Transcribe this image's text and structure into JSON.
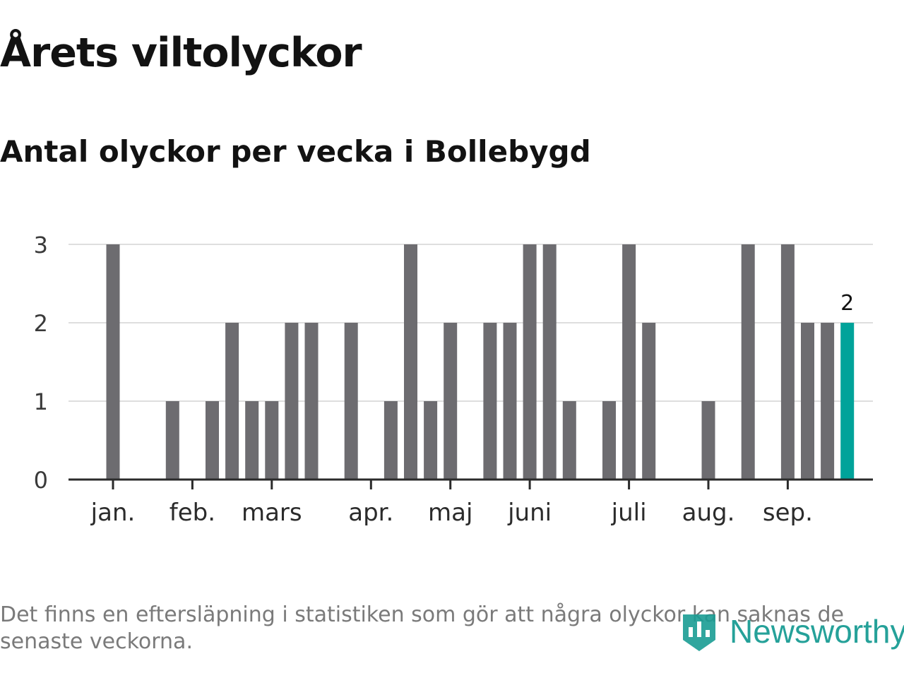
{
  "title": "Årets viltolyckor",
  "subtitle": "Antal olyckor per vecka i Bollebygd",
  "note": "Det finns en eftersläpning i statistiken som gör att några olyckor kan saknas de senaste veckorna.",
  "brand": {
    "name": "Newsworthy",
    "color": "#1a9c94"
  },
  "chart_data": {
    "type": "bar",
    "title": "Årets viltolyckor",
    "subtitle": "Antal olyckor per vecka i Bollebygd",
    "xlabel": "",
    "ylabel": "",
    "ylim": [
      0,
      3
    ],
    "yticks": [
      0,
      1,
      2,
      3
    ],
    "grid": true,
    "bar_color": "#6d6c70",
    "highlight_color": "#00a39a",
    "weeks": [
      1,
      2,
      3,
      4,
      5,
      6,
      7,
      8,
      9,
      10,
      11,
      12,
      13,
      14,
      15,
      16,
      17,
      18,
      19,
      20,
      21,
      22,
      23,
      24,
      25,
      26,
      27,
      28,
      29,
      30,
      31,
      32,
      33,
      34,
      35,
      36,
      37,
      38
    ],
    "values": [
      3,
      0,
      0,
      1,
      0,
      1,
      2,
      1,
      1,
      2,
      2,
      0,
      2,
      0,
      1,
      3,
      1,
      2,
      0,
      2,
      2,
      3,
      3,
      1,
      0,
      1,
      3,
      2,
      0,
      0,
      1,
      0,
      3,
      0,
      3,
      2,
      2,
      2
    ],
    "highlight_index": 37,
    "highlight_label": "2",
    "month_ticks": [
      {
        "label": "jan.",
        "week": 1
      },
      {
        "label": "feb.",
        "week": 5
      },
      {
        "label": "mars",
        "week": 9
      },
      {
        "label": "apr.",
        "week": 14
      },
      {
        "label": "maj",
        "week": 18
      },
      {
        "label": "juni",
        "week": 22
      },
      {
        "label": "juli",
        "week": 27
      },
      {
        "label": "aug.",
        "week": 31
      },
      {
        "label": "sep.",
        "week": 35
      }
    ]
  }
}
